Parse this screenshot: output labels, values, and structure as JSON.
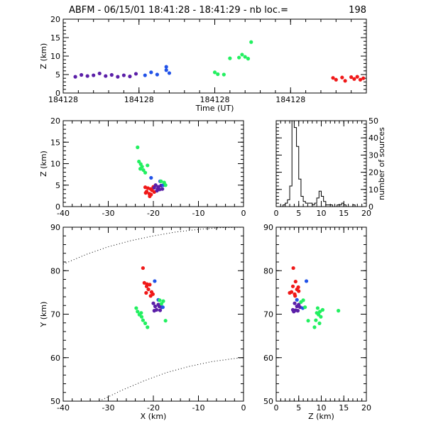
{
  "title": "ABFM - 06/15/01 18:41:28 - 18:41:29 - nb loc.=",
  "title_count": "198",
  "chart_data": [
    {
      "id": "time_altitude",
      "type": "scatter",
      "xlabel": "Time (UT)",
      "ylabel": "Z (km)",
      "xtick_labels": [
        "184128",
        "184128",
        "184128",
        "184128"
      ],
      "ylim": [
        0,
        20
      ],
      "yticks": [
        0,
        5,
        10,
        15,
        20
      ],
      "xlim": [
        0,
        1
      ],
      "series": [
        {
          "color": "#5b1fa8",
          "points": [
            [
              0.04,
              4.4
            ],
            [
              0.06,
              4.9
            ],
            [
              0.08,
              4.6
            ],
            [
              0.1,
              4.8
            ],
            [
              0.12,
              5.3
            ],
            [
              0.14,
              4.6
            ],
            [
              0.16,
              4.9
            ],
            [
              0.18,
              4.4
            ],
            [
              0.2,
              4.8
            ],
            [
              0.22,
              4.5
            ],
            [
              0.24,
              5.2
            ]
          ]
        },
        {
          "color": "#2152e8",
          "points": [
            [
              0.27,
              4.8
            ],
            [
              0.29,
              5.6
            ],
            [
              0.31,
              5.0
            ],
            [
              0.34,
              6.2
            ],
            [
              0.35,
              5.4
            ],
            [
              0.34,
              7.1
            ]
          ]
        },
        {
          "color": "#22f060",
          "points": [
            [
              0.5,
              5.6
            ],
            [
              0.51,
              5.1
            ],
            [
              0.53,
              5.0
            ],
            [
              0.55,
              9.4
            ],
            [
              0.58,
              9.6
            ],
            [
              0.59,
              10.4
            ],
            [
              0.6,
              9.8
            ],
            [
              0.61,
              9.3
            ],
            [
              0.62,
              13.8
            ]
          ]
        },
        {
          "color": "#f01818",
          "points": [
            [
              0.89,
              4.1
            ],
            [
              0.9,
              3.6
            ],
            [
              0.92,
              4.2
            ],
            [
              0.93,
              3.3
            ],
            [
              0.95,
              4.3
            ],
            [
              0.96,
              3.8
            ],
            [
              0.97,
              4.4
            ],
            [
              0.98,
              3.6
            ],
            [
              0.99,
              4.0
            ]
          ]
        }
      ]
    },
    {
      "id": "x_altitude",
      "type": "scatter",
      "ylabel": "Z (km)",
      "xlim": [
        -40,
        0
      ],
      "ylim": [
        0,
        20
      ],
      "xticks": [
        -40,
        -30,
        -20,
        -10,
        0
      ],
      "yticks": [
        0,
        5,
        10,
        15,
        20
      ],
      "series": [
        {
          "color": "#22f060",
          "points": [
            [
              -23.5,
              13.8
            ],
            [
              -23.2,
              10.5
            ],
            [
              -22.8,
              9.9
            ],
            [
              -22.5,
              9.3
            ],
            [
              -22.9,
              8.8
            ],
            [
              -22.2,
              8.5
            ],
            [
              -21.8,
              7.9
            ],
            [
              -21.3,
              9.6
            ]
          ]
        },
        {
          "color": "#f01818",
          "points": [
            [
              -21.8,
              4.5
            ],
            [
              -21.5,
              3.5
            ],
            [
              -21.2,
              4.3
            ],
            [
              -20.9,
              3.0
            ],
            [
              -20.6,
              4.1
            ],
            [
              -20.3,
              3.8
            ],
            [
              -20.0,
              4.6
            ],
            [
              -20.5,
              2.8
            ],
            [
              -21.7,
              3.2
            ],
            [
              -19.8,
              3.4
            ],
            [
              -20.8,
              2.4
            ]
          ]
        },
        {
          "color": "#5b1fa8",
          "points": [
            [
              -19.8,
              4.4
            ],
            [
              -19.5,
              5.0
            ],
            [
              -19.2,
              3.7
            ],
            [
              -18.9,
              4.6
            ],
            [
              -18.6,
              4.0
            ],
            [
              -18.3,
              4.9
            ],
            [
              -19.0,
              4.2
            ],
            [
              -18.0,
              4.1
            ]
          ]
        },
        {
          "color": "#2152e8",
          "points": [
            [
              -20.5,
              6.7
            ],
            [
              -18.5,
              5.9
            ],
            [
              -17.8,
              5.0
            ]
          ]
        },
        {
          "color": "#22f060",
          "points": [
            [
              -18.3,
              5.9
            ],
            [
              -17.6,
              5.6
            ],
            [
              -17.3,
              5.0
            ]
          ]
        }
      ]
    },
    {
      "id": "altitude_histogram",
      "type": "bar",
      "ylabel": "number of sources",
      "xlim": [
        0,
        20
      ],
      "ylim": [
        0,
        50
      ],
      "xticks": [
        0,
        5,
        10,
        15,
        20
      ],
      "yticks": [
        0,
        10,
        20,
        30,
        40,
        50
      ],
      "bin_width": 0.5,
      "bin_start": 1.5,
      "values": [
        1,
        2,
        4,
        12,
        50,
        46,
        35,
        16,
        6,
        3,
        2,
        2,
        2,
        1,
        2,
        5,
        9,
        6,
        3,
        1,
        1,
        1,
        0,
        0,
        1,
        1,
        2,
        1,
        0,
        0,
        0,
        1
      ]
    },
    {
      "id": "plan_view",
      "type": "scatter",
      "xlabel": "X (km)",
      "ylabel": "Y (km)",
      "xlim": [
        -40,
        0
      ],
      "ylim": [
        50,
        90
      ],
      "xticks": [
        -40,
        -30,
        -20,
        -10,
        0
      ],
      "yticks": [
        50,
        60,
        70,
        80,
        90
      ],
      "series": [
        {
          "color": "#f01818",
          "points": [
            [
              -22.3,
              80.6
            ],
            [
              -22.0,
              77.2
            ],
            [
              -21.5,
              76.4
            ],
            [
              -21.1,
              75.7
            ],
            [
              -20.8,
              76.8
            ],
            [
              -20.4,
              75.1
            ],
            [
              -20.1,
              74.6
            ],
            [
              -21.6,
              74.9
            ],
            [
              -20.6,
              74.2
            ],
            [
              -21.4,
              76.9
            ]
          ]
        },
        {
          "color": "#5b1fa8",
          "points": [
            [
              -20.0,
              72.5
            ],
            [
              -19.6,
              71.8
            ],
            [
              -19.3,
              71.0
            ],
            [
              -18.9,
              72.2
            ],
            [
              -18.5,
              70.9
            ],
            [
              -18.1,
              71.6
            ],
            [
              -19.8,
              70.8
            ],
            [
              -18.7,
              71.8
            ]
          ]
        },
        {
          "color": "#2152e8",
          "points": [
            [
              -19.7,
              77.6
            ],
            [
              -18.9,
              73.3
            ],
            [
              -17.9,
              71.6
            ]
          ]
        },
        {
          "color": "#22f060",
          "points": [
            [
              -23.8,
              71.4
            ],
            [
              -23.5,
              70.6
            ],
            [
              -23.1,
              69.9
            ],
            [
              -22.6,
              69.4
            ],
            [
              -22.3,
              68.6
            ],
            [
              -21.8,
              67.9
            ],
            [
              -21.3,
              67.0
            ],
            [
              -22.7,
              70.3
            ],
            [
              -18.6,
              73.2
            ],
            [
              -18.2,
              72.4
            ],
            [
              -17.8,
              73.0
            ],
            [
              -17.3,
              68.5
            ]
          ]
        }
      ],
      "boundary_arcs": [
        {
          "points": [
            [
              -40,
              81.5
            ],
            [
              -35,
              83.7
            ],
            [
              -30,
              85.5
            ],
            [
              -25,
              86.9
            ],
            [
              -20,
              88.0
            ],
            [
              -15,
              88.9
            ],
            [
              -10,
              89.5
            ],
            [
              -5,
              89.9
            ],
            [
              0,
              90.0
            ]
          ]
        },
        {
          "points": [
            [
              -32,
              50.0
            ],
            [
              -27,
              52.5
            ],
            [
              -22,
              54.7
            ],
            [
              -17,
              56.6
            ],
            [
              -12,
              58.0
            ],
            [
              -7,
              59.1
            ],
            [
              -2,
              59.8
            ],
            [
              0,
              60.0
            ]
          ]
        }
      ]
    },
    {
      "id": "z_plan_view",
      "type": "scatter",
      "xlabel": "Z (km)",
      "xlim": [
        0,
        20
      ],
      "ylim": [
        50,
        90
      ],
      "xticks": [
        0,
        5,
        10,
        15,
        20
      ],
      "yticks": [
        50,
        60,
        70,
        80,
        90
      ],
      "series": [
        {
          "color": "#f01818",
          "points": [
            [
              3.8,
              80.6
            ],
            [
              4.3,
              77.5
            ],
            [
              3.7,
              76.4
            ],
            [
              4.6,
              75.7
            ],
            [
              3.4,
              75.1
            ],
            [
              4.1,
              74.6
            ],
            [
              4.9,
              76.2
            ],
            [
              3.0,
              74.9
            ],
            [
              4.2,
              74.2
            ],
            [
              5.0,
              75.3
            ]
          ]
        },
        {
          "color": "#5b1fa8",
          "points": [
            [
              4.1,
              72.5
            ],
            [
              4.6,
              71.8
            ],
            [
              3.7,
              71.0
            ],
            [
              5.0,
              72.2
            ],
            [
              4.3,
              70.9
            ],
            [
              5.3,
              71.6
            ],
            [
              3.9,
              70.6
            ],
            [
              4.8,
              70.8
            ]
          ]
        },
        {
          "color": "#2152e8",
          "points": [
            [
              5.9,
              71.4
            ],
            [
              6.7,
              77.6
            ],
            [
              4.6,
              73.3
            ]
          ]
        },
        {
          "color": "#22f060",
          "points": [
            [
              5.5,
              72.8
            ],
            [
              6.0,
              73.2
            ],
            [
              6.4,
              71.6
            ],
            [
              7.1,
              68.5
            ],
            [
              9.2,
              71.4
            ],
            [
              9.7,
              70.6
            ],
            [
              9.4,
              69.9
            ],
            [
              9.9,
              69.4
            ],
            [
              8.8,
              68.6
            ],
            [
              9.6,
              67.9
            ],
            [
              8.5,
              67.0
            ],
            [
              10.3,
              71.0
            ],
            [
              13.8,
              70.8
            ],
            [
              9.0,
              70.3
            ]
          ]
        }
      ]
    }
  ]
}
